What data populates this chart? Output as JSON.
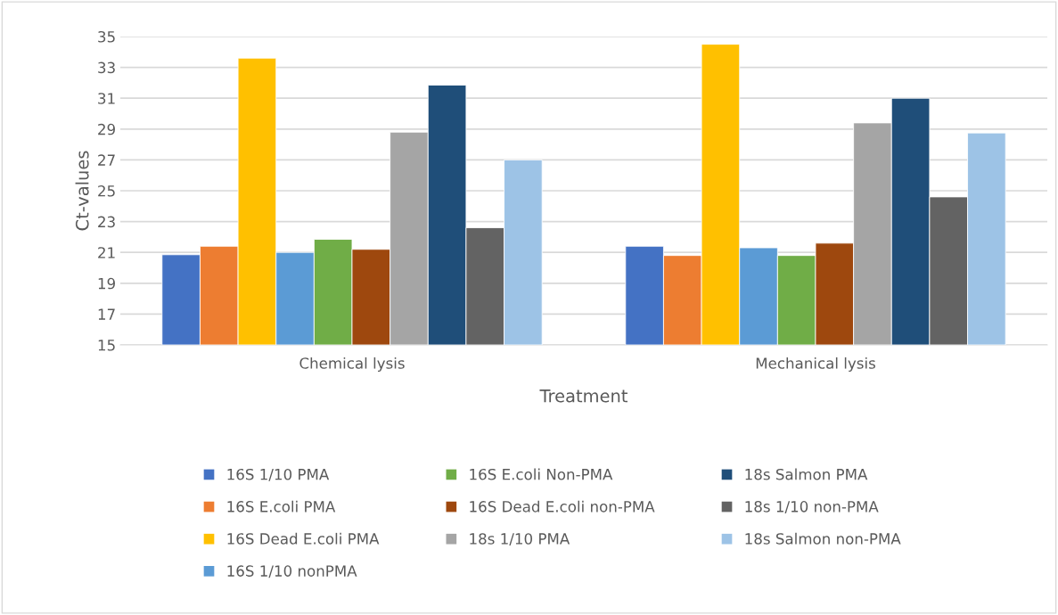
{
  "chart_data": {
    "type": "bar",
    "xlabel": "Treatment",
    "ylabel": "Ct-values",
    "categories": [
      "Chemical lysis",
      "Mechanical lysis"
    ],
    "series": [
      {
        "name": "16S 1/10 PMA",
        "color": "#4472c4",
        "values": [
          20.85,
          21.4
        ]
      },
      {
        "name": "16S E.coli PMA",
        "color": "#ed7d31",
        "values": [
          21.4,
          20.8
        ]
      },
      {
        "name": "16S Dead E.coli PMA",
        "color": "#ffc000",
        "values": [
          33.6,
          34.5
        ]
      },
      {
        "name": "16S 1/10 nonPMA",
        "color": "#5b9bd5",
        "values": [
          21.0,
          21.3
        ]
      },
      {
        "name": "16S E.coli Non-PMA",
        "color": "#70ad47",
        "values": [
          21.85,
          20.8
        ]
      },
      {
        "name": "16S Dead E.coli non-PMA",
        "color": "#9e480e",
        "values": [
          21.2,
          21.6
        ]
      },
      {
        "name": "18s 1/10 PMA",
        "color": "#a5a5a5",
        "values": [
          28.8,
          29.4
        ]
      },
      {
        "name": "18s Salmon PMA",
        "color": "#1f4e79",
        "values": [
          31.85,
          31.0
        ]
      },
      {
        "name": "18s 1/10 non-PMA",
        "color": "#636363",
        "values": [
          22.6,
          24.6
        ]
      },
      {
        "name": "18s Salmon non-PMA",
        "color": "#9dc3e6",
        "values": [
          27.0,
          28.75
        ]
      }
    ],
    "ylim": [
      15,
      35
    ],
    "yticks": [
      15,
      17,
      19,
      21,
      23,
      25,
      27,
      29,
      31,
      33,
      35
    ],
    "grid": "y",
    "legend": "bottom"
  }
}
